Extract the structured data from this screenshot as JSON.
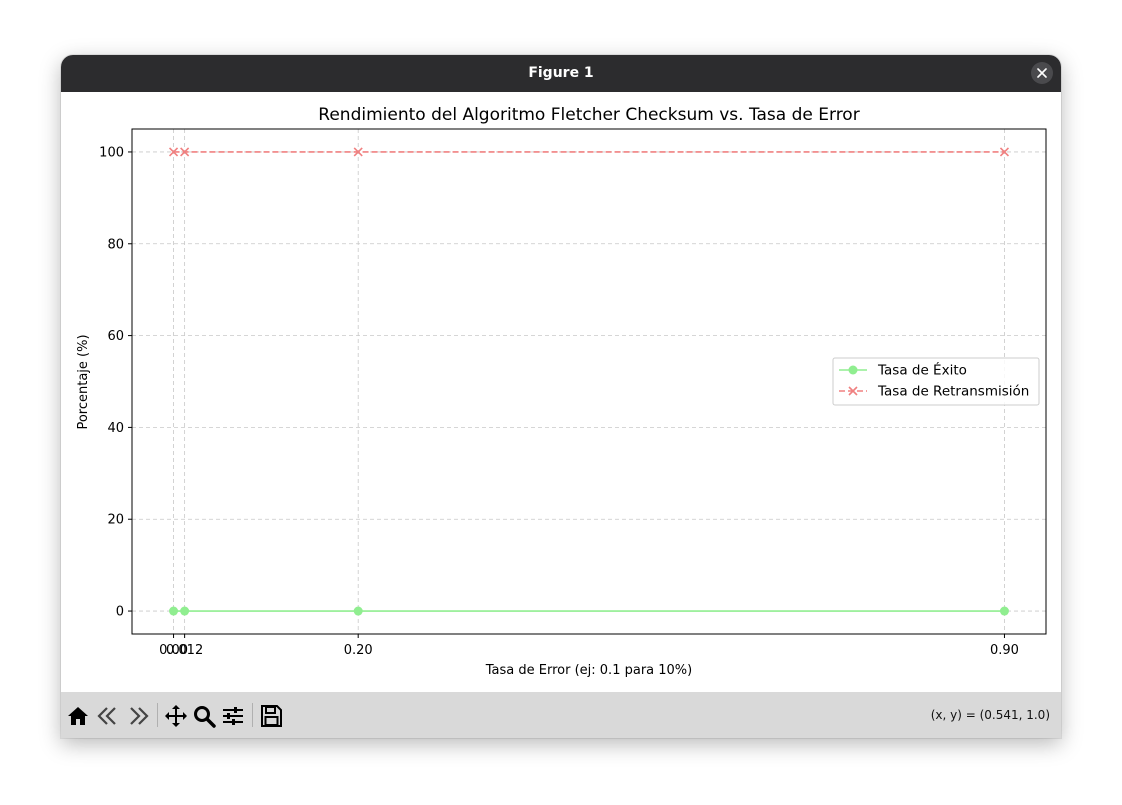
{
  "window": {
    "title": "Figure 1"
  },
  "toolbar": {
    "buttons": [
      {
        "name": "home-icon"
      },
      {
        "name": "back-arrow-icon"
      },
      {
        "name": "forward-arrow-icon"
      },
      {
        "name": "pan-icon"
      },
      {
        "name": "zoom-icon"
      },
      {
        "name": "configure-subplots-icon"
      },
      {
        "name": "save-icon"
      }
    ],
    "coords": "(x, y) = (0.541, 1.0)"
  },
  "colors": {
    "success": "#90ee90",
    "retransmission": "#f08080",
    "grid": "#c8c8c8"
  },
  "chart_data": {
    "type": "line",
    "title": "Rendimiento del Algoritmo Fletcher Checksum vs. Tasa de Error",
    "xlabel": "Tasa de Error (ej: 0.1 para 10%)",
    "ylabel": "Porcentaje (%)",
    "x": [
      0.0,
      0.012,
      0.2,
      0.9
    ],
    "xtick_labels": [
      "0.00",
      "0.012",
      "0.20",
      "0.90"
    ],
    "yticks": [
      0,
      20,
      40,
      60,
      80,
      100
    ],
    "xlim": [
      -0.045,
      0.945
    ],
    "ylim": [
      -5,
      105
    ],
    "grid": true,
    "legend_position": "center-right",
    "series": [
      {
        "name": "Tasa de Éxito",
        "values": [
          0,
          0,
          0,
          0
        ],
        "color": "#90ee90",
        "linestyle": "solid",
        "marker": "circle"
      },
      {
        "name": "Tasa de Retransmisión",
        "values": [
          100,
          100,
          100,
          100
        ],
        "color": "#f08080",
        "linestyle": "dashed",
        "marker": "x"
      }
    ]
  }
}
